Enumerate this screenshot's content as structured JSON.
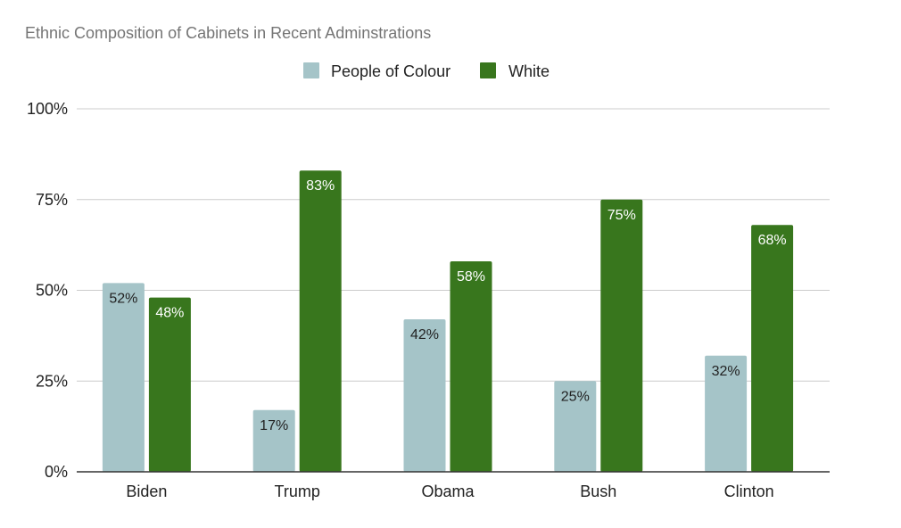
{
  "chart_data": {
    "type": "bar",
    "title": "Ethnic Composition of Cabinets in Recent Adminstrations",
    "categories": [
      "Biden",
      "Trump",
      "Obama",
      "Bush",
      "Clinton"
    ],
    "series": [
      {
        "name": "People of Colour",
        "color": "#a5c4c8",
        "values": [
          52,
          17,
          42,
          25,
          32
        ],
        "labels": [
          "52%",
          "17%",
          "42%",
          "25%",
          "32%"
        ]
      },
      {
        "name": "White",
        "color": "#38761d",
        "values": [
          48,
          83,
          58,
          75,
          68
        ],
        "labels": [
          "48%",
          "83%",
          "58%",
          "75%",
          "68%"
        ]
      }
    ],
    "yticks": [
      0,
      25,
      50,
      75,
      100
    ],
    "ytick_labels": [
      "0%",
      "25%",
      "50%",
      "75%",
      "100%"
    ],
    "ylim": [
      0,
      100
    ],
    "grid": true,
    "legend_position": "top-center",
    "gridline_color": "#cccccc",
    "axis_color": "#333333"
  }
}
